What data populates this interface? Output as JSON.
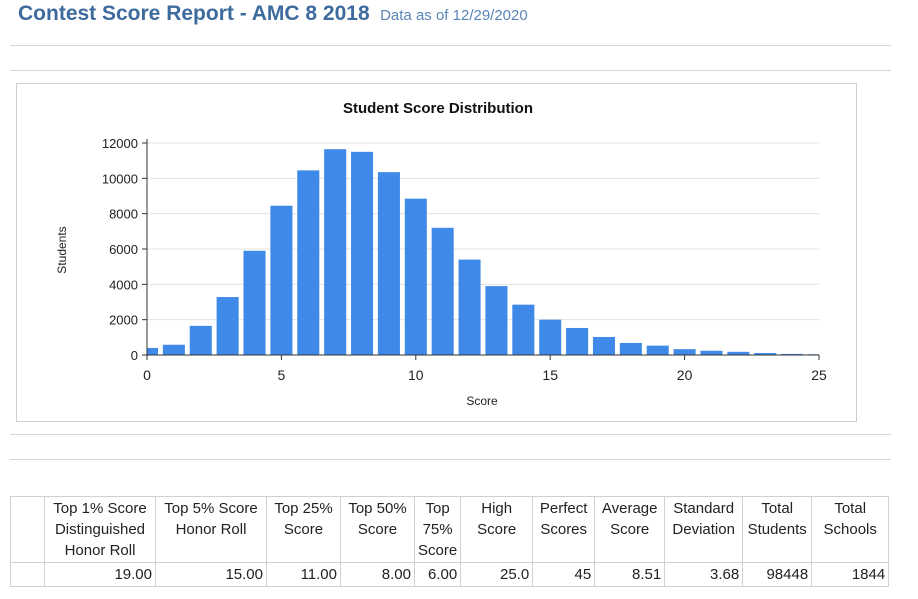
{
  "header": {
    "title": "Contest Score Report - AMC 8 2018",
    "subtitle": "Data as of 12/29/2020"
  },
  "chart_data": {
    "type": "bar",
    "title": "Student Score Distribution",
    "xlabel": "Score",
    "ylabel": "Students",
    "x": [
      0,
      1,
      2,
      3,
      4,
      5,
      6,
      7,
      8,
      9,
      10,
      11,
      12,
      13,
      14,
      15,
      16,
      17,
      18,
      19,
      20,
      21,
      22,
      23,
      24,
      25
    ],
    "values": [
      400,
      580,
      1650,
      3280,
      5900,
      8450,
      10450,
      11650,
      11500,
      10350,
      8850,
      7200,
      5400,
      3900,
      2850,
      2000,
      1530,
      1020,
      680,
      530,
      330,
      240,
      180,
      110,
      60,
      40
    ],
    "xlim": [
      0,
      25
    ],
    "ylim": [
      0,
      12000
    ],
    "xticks": [
      "0",
      "5",
      "10",
      "15",
      "20",
      "25"
    ],
    "yticks": [
      "0",
      "2000",
      "4000",
      "6000",
      "8000",
      "10000",
      "12000"
    ],
    "bar_color": "#3f8ae8",
    "grid": true
  },
  "stats_table": {
    "headers": [
      "",
      "Top 1% Score Distinguished Honor Roll",
      "Top 5% Score Honor Roll",
      "Top 25% Score",
      "Top 50% Score",
      "Top 75% Score",
      "High Score",
      "Perfect Scores",
      "Average Score",
      "Standard Deviation",
      "Total Students",
      "Total Schools"
    ],
    "values": [
      "",
      "19.00",
      "15.00",
      "11.00",
      "8.00",
      "6.00",
      "25.0",
      "45",
      "8.51",
      "3.68",
      "98448",
      "1844"
    ]
  }
}
